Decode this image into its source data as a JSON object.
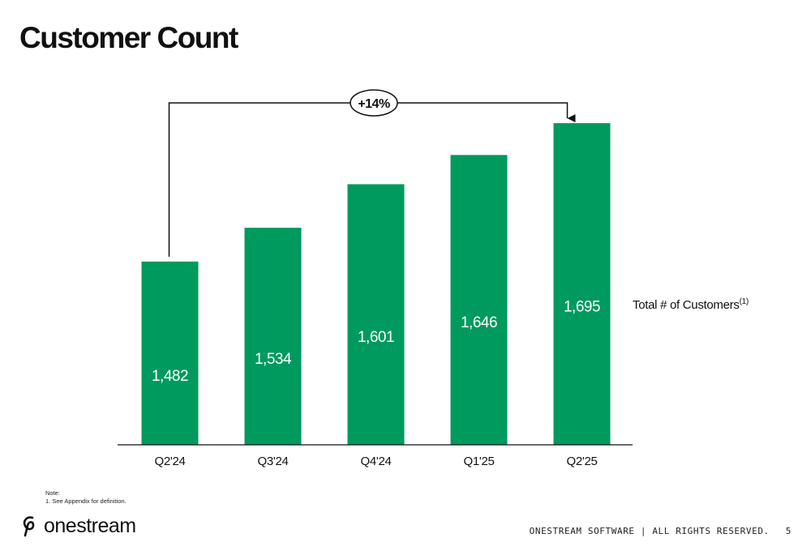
{
  "title": "Customer Count",
  "chart_data": {
    "type": "bar",
    "categories": [
      "Q2'24",
      "Q3'24",
      "Q4'24",
      "Q1'25",
      "Q2'25"
    ],
    "values": [
      1482,
      1534,
      1601,
      1646,
      1695
    ],
    "data_labels": [
      "1,482",
      "1,534",
      "1,601",
      "1,646",
      "1,695"
    ],
    "series_name": "Total # of Customers",
    "series_footnote": "(1)",
    "growth_annotation": "+14%",
    "bar_color": "#009a5e",
    "ylim": [
      0,
      1695
    ],
    "grid": false
  },
  "note": {
    "heading": "Note:",
    "items": [
      "1.   See Appendix for definition."
    ]
  },
  "logo": {
    "icon": "onestream-swirl-icon",
    "text": "onestream"
  },
  "footer": {
    "copyright": "ONESTREAM SOFTWARE | ALL RIGHTS RESERVED.",
    "page_number": "5"
  }
}
